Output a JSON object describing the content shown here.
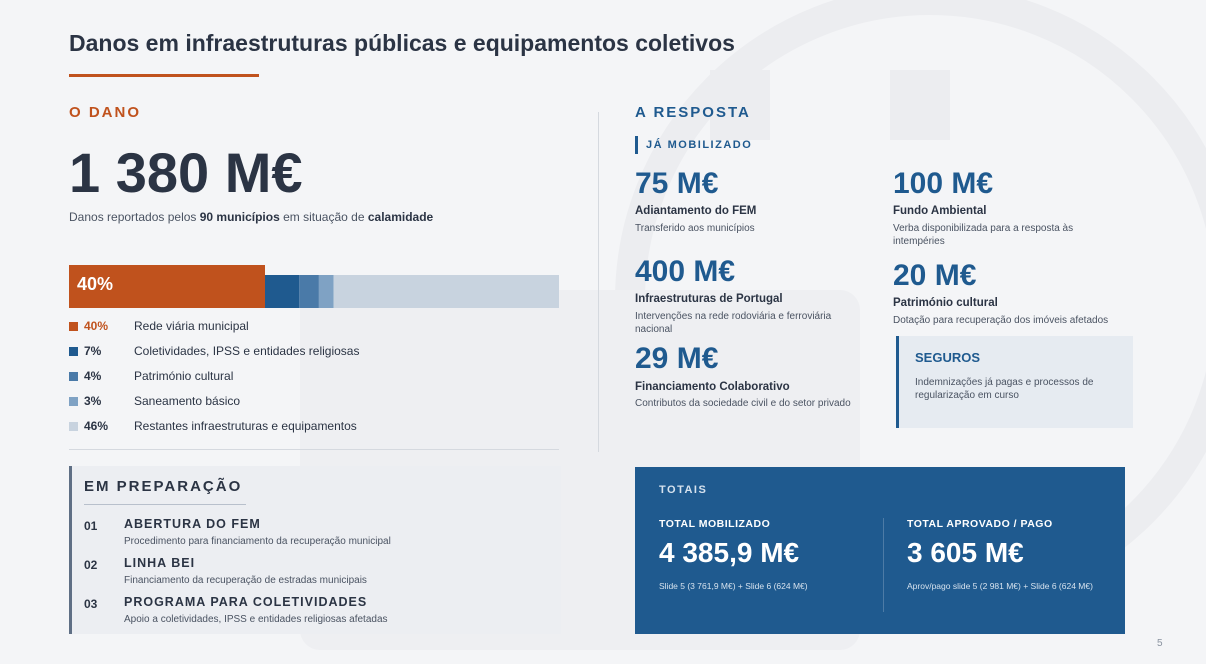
{
  "header": {
    "title": "Danos em infraestruturas públicas e equipamentos coletivos"
  },
  "damage": {
    "heading": "O DANO",
    "amount": "1 380 M€",
    "caption": [
      "Danos reportados pelos ",
      "90 municípios",
      " em situação de ",
      "calamidade"
    ],
    "breakdown": {
      "values": [
        40,
        7,
        4,
        3,
        46
      ],
      "value_labels": [
        "40%",
        "7%",
        "4%",
        "3%",
        "46%"
      ],
      "names": [
        "Rede viária municipal",
        "Coletividades, IPSS e entidades religiosas",
        "Património cultural",
        "Saneamento básico",
        "Restantes infraestruturas e equipamentos"
      ],
      "colors": [
        "#c0521d",
        "#1f5a8f",
        "#4a7aa8",
        "#7fa2c4",
        "#c8d3df"
      ]
    }
  },
  "preparation": {
    "heading": "EM PREPARAÇÃO",
    "items": [
      {
        "number": "01",
        "title": "ABERTURA DO FEM",
        "text": "Procedimento para financiamento da recuperação municipal"
      },
      {
        "number": "02",
        "title": "LINHA BEI",
        "text": "Financiamento da recuperação de estradas municipais"
      },
      {
        "number": "03",
        "title": "PROGRAMA PARA COLETIVIDADES",
        "text": "Apoio a coletividades, IPSS e entidades religiosas afetadas"
      }
    ]
  },
  "response": {
    "heading": "A RESPOSTA",
    "subheading": "JÁ MOBILIZADO",
    "items": [
      {
        "amount": "75 M€",
        "title": "Adiantamento do FEM",
        "text": "Transferido aos municípios"
      },
      {
        "amount": "400 M€",
        "title": "Infraestruturas de Portugal",
        "text": "Intervenções na rede rodoviária e ferroviária nacional"
      },
      {
        "amount": "29 M€",
        "title": "Financiamento Colaborativo",
        "text": "Contributos da sociedade civil e do setor privado"
      },
      {
        "amount": "100 M€",
        "title": "Fundo Ambiental",
        "text": "Verba disponibilizada para a resposta às intempéries"
      },
      {
        "amount": "20 M€",
        "title": "Património cultural",
        "text": "Dotação para recuperação dos imóveis afetados"
      }
    ],
    "insurance": {
      "title": "SEGUROS",
      "text": "Indemnizações já pagas e processos de regularização em curso"
    }
  },
  "totals": {
    "heading": "TOTAIS",
    "columns": [
      {
        "label": "TOTAL MOBILIZADO",
        "amount": "4 385,9 M€",
        "note": "Slide 5 (3 761,9 M€) + Slide 6 (624 M€)"
      },
      {
        "label": "TOTAL APROVADO / PAGO",
        "amount": "3 605 M€",
        "note": "Aprov/pago slide 5 (2 981 M€) + Slide 6 (624 M€)"
      }
    ]
  },
  "page_number": "5"
}
